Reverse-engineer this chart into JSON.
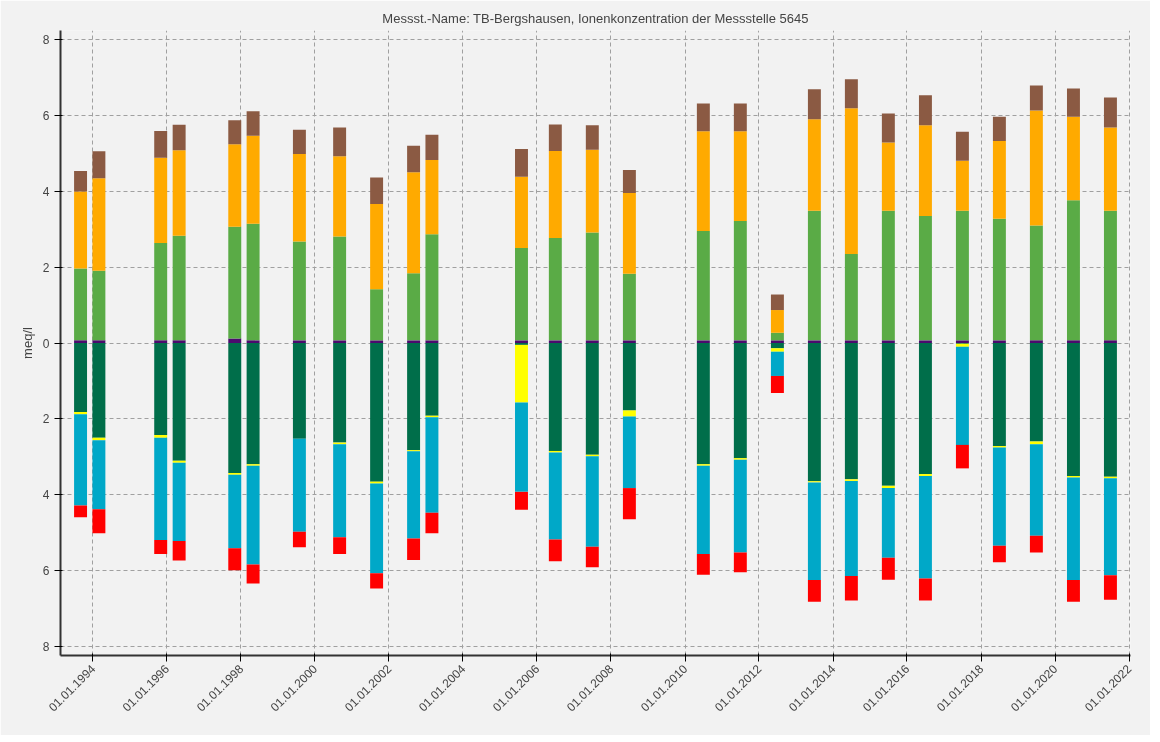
{
  "chart_data": {
    "type": "bar",
    "stacked": true,
    "title": "Messst.-Name: TB-Bergshausen, Ionenkonzentration der Messstelle 5645",
    "ylabel": "meq/l",
    "x": [
      "1993-09",
      "1994-03",
      "1995-11",
      "1996-05",
      "1997-11",
      "1998-05",
      "1999-08",
      "2000-09",
      "2001-09",
      "2002-09",
      "2003-03",
      "2005-08",
      "2006-07",
      "2007-07",
      "2008-07",
      "2010-07",
      "2011-07",
      "2012-07",
      "2013-07",
      "2014-07",
      "2015-07",
      "2016-07",
      "2017-07",
      "2018-07",
      "2019-07",
      "2020-07",
      "2021-07"
    ],
    "series": [
      {
        "color": "#4b0a6e",
        "values": [
          0.07,
          0.07,
          0.07,
          0.07,
          0.12,
          0.07,
          0.07,
          0.07,
          0.07,
          0.07,
          0.07,
          0.07,
          0.07,
          0.07,
          0.07,
          0.07,
          0.07,
          0.07,
          0.07,
          0.07,
          0.07,
          0.07,
          0.07,
          0.07,
          0.07,
          0.07,
          0.07
        ]
      },
      {
        "color": "#5aab46",
        "values": [
          1.9,
          1.84,
          2.57,
          2.76,
          2.95,
          3.08,
          2.61,
          2.74,
          1.35,
          1.77,
          2.8,
          2.44,
          2.7,
          2.85,
          1.76,
          2.89,
          3.15,
          0.2,
          3.42,
          2.28,
          3.42,
          3.28,
          3.42,
          3.21,
          3.03,
          3.7,
          3.42
        ]
      },
      {
        "color": "#ffaa00",
        "values": [
          2.03,
          2.44,
          2.25,
          2.26,
          2.18,
          2.32,
          2.31,
          2.12,
          2.25,
          2.67,
          1.96,
          1.88,
          2.3,
          2.18,
          2.13,
          2.63,
          2.37,
          0.6,
          2.42,
          3.85,
          1.8,
          2.4,
          1.32,
          2.05,
          3.04,
          2.2,
          2.2
        ]
      },
      {
        "color": "#8b5a43",
        "values": [
          0.54,
          0.71,
          0.71,
          0.67,
          0.63,
          0.65,
          0.64,
          0.76,
          0.7,
          0.7,
          0.67,
          0.73,
          0.7,
          0.65,
          0.61,
          0.73,
          0.73,
          0.41,
          0.79,
          0.76,
          0.77,
          0.79,
          0.77,
          0.64,
          0.66,
          0.75,
          0.79
        ]
      },
      {
        "color": "#006e4a",
        "values": [
          -1.82,
          -2.5,
          -2.43,
          -3.11,
          -3.43,
          -3.2,
          -2.53,
          -2.63,
          -3.66,
          -2.83,
          -1.92,
          -0.05,
          -2.85,
          -2.95,
          -1.78,
          -3.2,
          -3.04,
          -0.14,
          -3.65,
          -3.6,
          -3.77,
          -3.46,
          -0.02,
          -2.72,
          -2.6,
          -3.51,
          -3.53
        ]
      },
      {
        "color": "#ffff00",
        "values": [
          -0.06,
          -0.07,
          -0.07,
          -0.05,
          -0.05,
          -0.04,
          null,
          -0.04,
          -0.05,
          -0.03,
          -0.04,
          -1.52,
          -0.04,
          -0.04,
          -0.16,
          -0.04,
          -0.04,
          -0.09,
          -0.03,
          -0.04,
          -0.06,
          -0.05,
          -0.08,
          -0.04,
          -0.07,
          -0.04,
          -0.04
        ]
      },
      {
        "color": "#00a8c8",
        "values": [
          -2.41,
          -1.82,
          -2.7,
          -2.07,
          -1.94,
          -2.61,
          -2.45,
          -2.46,
          -2.37,
          -2.3,
          -2.52,
          -2.36,
          -2.3,
          -2.39,
          -1.89,
          -2.33,
          -2.45,
          -0.64,
          -2.58,
          -2.51,
          -1.84,
          -2.71,
          -2.59,
          -2.59,
          -2.42,
          -2.71,
          -2.56
        ]
      },
      {
        "color": "#ff0000",
        "values": [
          -0.31,
          -0.63,
          -0.37,
          -0.51,
          -0.58,
          -0.5,
          -0.41,
          -0.44,
          -0.4,
          -0.57,
          -0.54,
          -0.47,
          -0.57,
          -0.54,
          -0.82,
          -0.55,
          -0.52,
          -0.45,
          -0.57,
          -0.65,
          -0.58,
          -0.58,
          -0.62,
          -0.44,
          -0.44,
          -0.57,
          -0.65
        ]
      }
    ],
    "xlim": [
      "1993-02-15",
      "2022-01-15"
    ],
    "xticks": [
      {
        "value": "1994-01-01",
        "label": "01.01.1994"
      },
      {
        "value": "1996-01-01",
        "label": "01.01.1996"
      },
      {
        "value": "1998-01-01",
        "label": "01.01.1998"
      },
      {
        "value": "2000-01-01",
        "label": "01.01.2000"
      },
      {
        "value": "2002-01-01",
        "label": "01.01.2002"
      },
      {
        "value": "2004-01-01",
        "label": "01.01.2004"
      },
      {
        "value": "2006-01-01",
        "label": "01.01.2006"
      },
      {
        "value": "2008-01-01",
        "label": "01.01.2008"
      },
      {
        "value": "2010-01-01",
        "label": "01.01.2010"
      },
      {
        "value": "2012-01-01",
        "label": "01.01.2012"
      },
      {
        "value": "2014-01-01",
        "label": "01.01.2014"
      },
      {
        "value": "2016-01-01",
        "label": "01.01.2016"
      },
      {
        "value": "2018-01-01",
        "label": "01.01.2018"
      },
      {
        "value": "2020-01-01",
        "label": "01.01.2020"
      },
      {
        "value": "2022-01-01",
        "label": "01.01.2022"
      }
    ],
    "ylim": [
      -8.25,
      8.25
    ],
    "yticks": [
      {
        "value": -8,
        "label": "8"
      },
      {
        "value": -6,
        "label": "6"
      },
      {
        "value": -4,
        "label": "4"
      },
      {
        "value": -2,
        "label": "2"
      },
      0,
      2,
      4,
      6,
      8
    ],
    "grid": true
  }
}
